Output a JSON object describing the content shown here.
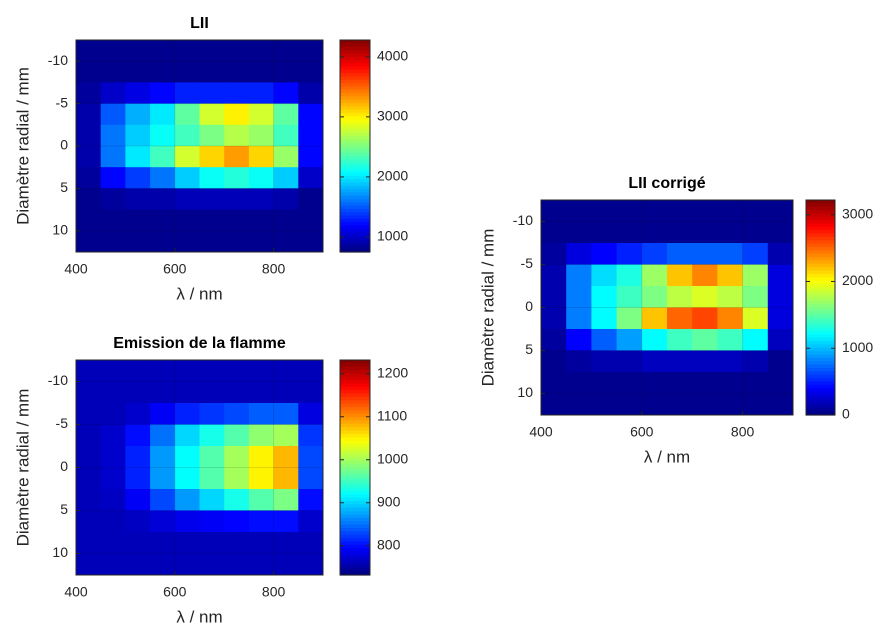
{
  "chart_data": [
    {
      "type": "heatmap",
      "title": "LII",
      "xlabel": "λ / nm",
      "ylabel": "Diamètre radial / mm",
      "x": [
        425,
        475,
        525,
        575,
        625,
        675,
        725,
        775,
        825,
        875
      ],
      "y": [
        -11.25,
        -8.75,
        -6.25,
        -3.75,
        -1.25,
        1.25,
        3.75,
        6.25,
        8.75,
        11.25
      ],
      "values": [
        [
          800,
          800,
          800,
          800,
          800,
          800,
          800,
          800,
          800,
          800
        ],
        [
          800,
          800,
          800,
          800,
          800,
          800,
          800,
          800,
          800,
          800
        ],
        [
          850,
          1000,
          1100,
          1200,
          1300,
          1300,
          1300,
          1300,
          1200,
          900
        ],
        [
          900,
          1500,
          1800,
          2000,
          2400,
          2800,
          3000,
          2800,
          2400,
          1200
        ],
        [
          900,
          1600,
          1900,
          2100,
          2300,
          2500,
          2700,
          2600,
          2300,
          1200
        ],
        [
          900,
          1600,
          2000,
          2300,
          2800,
          3100,
          3300,
          3100,
          2600,
          1200
        ],
        [
          850,
          1200,
          1400,
          1600,
          1900,
          2100,
          2200,
          2100,
          1900,
          1000
        ],
        [
          800,
          850,
          900,
          900,
          950,
          950,
          950,
          950,
          900,
          800
        ],
        [
          800,
          800,
          800,
          800,
          800,
          800,
          800,
          800,
          800,
          800
        ],
        [
          800,
          800,
          800,
          800,
          800,
          800,
          800,
          800,
          800,
          800
        ]
      ],
      "xlim": [
        400,
        900
      ],
      "ylim": [
        -12.5,
        12.5
      ],
      "xticks": [
        400,
        600,
        800
      ],
      "yticks": [
        -10,
        -5,
        0,
        5,
        10
      ],
      "clim": [
        750,
        4280
      ],
      "cticks": [
        1000,
        2000,
        3000,
        4000
      ],
      "colormap": "jet",
      "grid": true
    },
    {
      "type": "heatmap",
      "title": "Emission de la flamme",
      "xlabel": "λ / nm",
      "ylabel": "Diamètre radial / mm",
      "x": [
        425,
        475,
        525,
        575,
        625,
        675,
        725,
        775,
        825,
        875
      ],
      "y": [
        -11.25,
        -8.75,
        -6.25,
        -3.75,
        -1.25,
        1.25,
        3.75,
        6.25,
        8.75,
        11.25
      ],
      "values": [
        [
          760,
          760,
          760,
          760,
          760,
          760,
          760,
          760,
          760,
          760
        ],
        [
          760,
          760,
          760,
          760,
          760,
          760,
          760,
          760,
          760,
          760
        ],
        [
          760,
          760,
          770,
          790,
          810,
          820,
          830,
          840,
          840,
          780
        ],
        [
          760,
          770,
          800,
          850,
          900,
          930,
          960,
          990,
          1000,
          820
        ],
        [
          760,
          770,
          810,
          870,
          920,
          960,
          1000,
          1050,
          1080,
          830
        ],
        [
          760,
          770,
          810,
          870,
          920,
          960,
          1000,
          1050,
          1080,
          830
        ],
        [
          760,
          765,
          790,
          830,
          870,
          900,
          930,
          960,
          980,
          800
        ],
        [
          760,
          760,
          765,
          775,
          785,
          790,
          795,
          800,
          800,
          770
        ],
        [
          760,
          760,
          760,
          760,
          760,
          760,
          760,
          760,
          760,
          760
        ],
        [
          760,
          760,
          760,
          760,
          760,
          760,
          760,
          760,
          760,
          760
        ]
      ],
      "xlim": [
        400,
        900
      ],
      "ylim": [
        -12.5,
        12.5
      ],
      "xticks": [
        400,
        600,
        800
      ],
      "yticks": [
        -10,
        -5,
        0,
        5,
        10
      ],
      "clim": [
        732,
        1232
      ],
      "cticks": [
        800,
        900,
        1000,
        1100,
        1200
      ],
      "colormap": "jet",
      "grid": true
    },
    {
      "type": "heatmap",
      "title": "LII corrigé",
      "xlabel": "λ / nm",
      "ylabel": "Diamètre radial / mm",
      "x": [
        425,
        475,
        525,
        575,
        625,
        675,
        725,
        775,
        825,
        875
      ],
      "y": [
        -11.25,
        -8.75,
        -6.25,
        -3.75,
        -1.25,
        1.25,
        3.75,
        6.25,
        8.75,
        11.25
      ],
      "values": [
        [
          50,
          50,
          50,
          50,
          50,
          50,
          50,
          50,
          50,
          50
        ],
        [
          50,
          50,
          50,
          50,
          50,
          50,
          50,
          50,
          50,
          50
        ],
        [
          100,
          300,
          400,
          500,
          600,
          700,
          700,
          700,
          600,
          150
        ],
        [
          150,
          800,
          1100,
          1300,
          1700,
          2200,
          2400,
          2200,
          1700,
          300
        ],
        [
          150,
          800,
          1200,
          1400,
          1600,
          1800,
          1900,
          1800,
          1600,
          300
        ],
        [
          150,
          800,
          1200,
          1600,
          2200,
          2500,
          2600,
          2400,
          1900,
          300
        ],
        [
          100,
          400,
          700,
          900,
          1200,
          1400,
          1500,
          1400,
          1200,
          200
        ],
        [
          50,
          100,
          150,
          150,
          200,
          200,
          200,
          200,
          150,
          50
        ],
        [
          50,
          50,
          50,
          50,
          50,
          50,
          50,
          50,
          50,
          50
        ],
        [
          50,
          50,
          50,
          50,
          50,
          50,
          50,
          50,
          50,
          50
        ]
      ],
      "xlim": [
        400,
        900
      ],
      "ylim": [
        -12.5,
        12.5
      ],
      "xticks": [
        400,
        600,
        800
      ],
      "yticks": [
        -10,
        -5,
        0,
        5,
        10
      ],
      "clim": [
        0,
        3220
      ],
      "cticks": [
        0,
        1000,
        2000,
        3000
      ],
      "colormap": "jet",
      "grid": true
    }
  ]
}
